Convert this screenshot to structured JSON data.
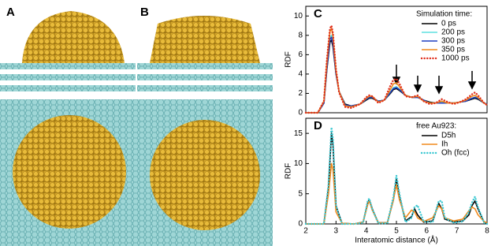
{
  "panel_labels": [
    "A",
    "B"
  ],
  "chart_data": [
    {
      "type": "line",
      "panel": "C",
      "ylabel": "RDF",
      "legend_title": "Simulation time:",
      "xlim": [
        2,
        8
      ],
      "ylim": [
        0,
        11
      ],
      "yticks": [
        0,
        2,
        4,
        6,
        8,
        10
      ],
      "x": [
        2.0,
        2.4,
        2.6,
        2.7,
        2.8,
        2.85,
        2.9,
        3.0,
        3.1,
        3.3,
        3.5,
        3.8,
        4.0,
        4.1,
        4.2,
        4.4,
        4.6,
        4.8,
        4.9,
        5.0,
        5.1,
        5.3,
        5.5,
        5.7,
        5.9,
        6.1,
        6.3,
        6.5,
        6.7,
        6.9,
        7.1,
        7.3,
        7.5,
        7.6,
        7.7,
        7.9,
        8.0
      ],
      "series": [
        {
          "name": "0 ps",
          "color": "#000000",
          "values": [
            0,
            0,
            1.0,
            4.5,
            7.3,
            7.5,
            6.8,
            4.0,
            2.2,
            0.9,
            0.7,
            0.9,
            1.3,
            1.5,
            1.5,
            1.2,
            1.3,
            2.0,
            2.4,
            2.5,
            2.3,
            1.8,
            1.6,
            1.6,
            1.3,
            1.1,
            1.0,
            1.0,
            1.0,
            1.0,
            1.1,
            1.2,
            1.4,
            1.5,
            1.4,
            1.0,
            0.9
          ]
        },
        {
          "name": "200 ps",
          "color": "#5fe0e0",
          "values": [
            0,
            0,
            1.1,
            4.8,
            7.8,
            8.0,
            7.3,
            4.2,
            2.2,
            0.8,
            0.6,
            0.9,
            1.4,
            1.6,
            1.6,
            1.2,
            1.3,
            2.1,
            2.6,
            2.7,
            2.4,
            1.8,
            1.6,
            1.7,
            1.3,
            1.0,
            1.0,
            1.1,
            1.0,
            1.0,
            1.1,
            1.3,
            1.5,
            1.6,
            1.5,
            1.0,
            0.9
          ]
        },
        {
          "name": "300 ps",
          "color": "#1f3fbf",
          "values": [
            0,
            0,
            1.0,
            4.7,
            7.6,
            7.8,
            7.1,
            4.1,
            2.2,
            0.8,
            0.7,
            0.9,
            1.4,
            1.6,
            1.6,
            1.2,
            1.3,
            2.1,
            2.5,
            2.6,
            2.4,
            1.8,
            1.6,
            1.6,
            1.3,
            1.0,
            1.0,
            1.0,
            1.0,
            1.0,
            1.1,
            1.2,
            1.5,
            1.6,
            1.5,
            1.0,
            0.9
          ]
        },
        {
          "name": "350 ps",
          "color": "#f08a1c",
          "values": [
            0,
            0,
            1.2,
            5.3,
            8.4,
            8.7,
            7.9,
            4.4,
            2.2,
            0.7,
            0.6,
            0.9,
            1.5,
            1.7,
            1.7,
            1.1,
            1.3,
            2.4,
            3.0,
            3.1,
            2.7,
            1.8,
            1.6,
            1.7,
            1.2,
            1.0,
            1.0,
            1.2,
            1.0,
            1.0,
            1.1,
            1.3,
            1.7,
            1.8,
            1.6,
            1.0,
            0.8
          ]
        },
        {
          "name": "1000 ps",
          "color": "#e0301e",
          "dotted": true,
          "values": [
            0,
            0,
            1.2,
            5.5,
            8.7,
            9.0,
            8.2,
            4.5,
            2.1,
            0.6,
            0.5,
            0.9,
            1.6,
            1.8,
            1.7,
            1.0,
            1.3,
            2.8,
            3.4,
            3.5,
            3.0,
            1.7,
            1.6,
            1.8,
            1.2,
            0.9,
            1.0,
            1.4,
            1.1,
            0.9,
            1.1,
            1.4,
            1.9,
            2.1,
            1.8,
            1.0,
            0.8
          ]
        }
      ]
    },
    {
      "type": "line",
      "panel": "D",
      "ylabel": "RDF",
      "xlabel": "Interatomic distance (Å)",
      "legend_title": "free Au923:",
      "xlim": [
        2,
        8
      ],
      "xticks": [
        2,
        3,
        4,
        5,
        6,
        7,
        8
      ],
      "ylim": [
        0,
        17.5
      ],
      "yticks": [
        0,
        5,
        10,
        15
      ],
      "x": [
        2.0,
        2.6,
        2.75,
        2.85,
        2.9,
        3.0,
        3.2,
        3.6,
        3.9,
        4.05,
        4.1,
        4.2,
        4.4,
        4.7,
        4.9,
        5.0,
        5.1,
        5.3,
        5.5,
        5.6,
        5.7,
        5.9,
        6.2,
        6.4,
        6.5,
        6.6,
        6.9,
        7.2,
        7.4,
        7.5,
        7.6,
        7.7,
        7.9,
        8.0
      ],
      "series": [
        {
          "name": "D5h",
          "color": "#000000",
          "values": [
            0,
            0,
            6,
            15,
            13,
            3,
            0.1,
            0,
            0.3,
            3.5,
            4,
            2.5,
            0.2,
            0.2,
            4,
            7.5,
            4.5,
            0.5,
            1.2,
            2.5,
            1.5,
            0.3,
            0.5,
            3.4,
            2.5,
            0.8,
            0.3,
            0.5,
            1.5,
            3,
            3.8,
            2.5,
            0.3,
            0.1
          ]
        },
        {
          "name": "Ih",
          "color": "#f08a1c",
          "values": [
            0,
            0,
            5,
            10,
            9,
            2,
            0.1,
            0,
            0.3,
            3.2,
            3.8,
            2.3,
            0.2,
            0.2,
            4,
            6.5,
            4,
            1,
            2.3,
            2,
            1,
            0.4,
            1,
            3,
            2.5,
            1,
            0.5,
            0.8,
            2.2,
            2.8,
            2.5,
            1.5,
            0.4,
            0.2
          ]
        },
        {
          "name": "Oh (fcc)",
          "color": "#3cc8d2",
          "dotted": true,
          "values": [
            0,
            0,
            6.5,
            16,
            14,
            3,
            0,
            0,
            0.2,
            3.8,
            4.2,
            2.5,
            0.1,
            0.1,
            4.5,
            8,
            5,
            0.3,
            1,
            2.8,
            3.1,
            0.4,
            0.3,
            3.8,
            3.8,
            1,
            0.2,
            0.4,
            2,
            3.5,
            4.5,
            2.8,
            0.2,
            0
          ]
        }
      ]
    }
  ]
}
